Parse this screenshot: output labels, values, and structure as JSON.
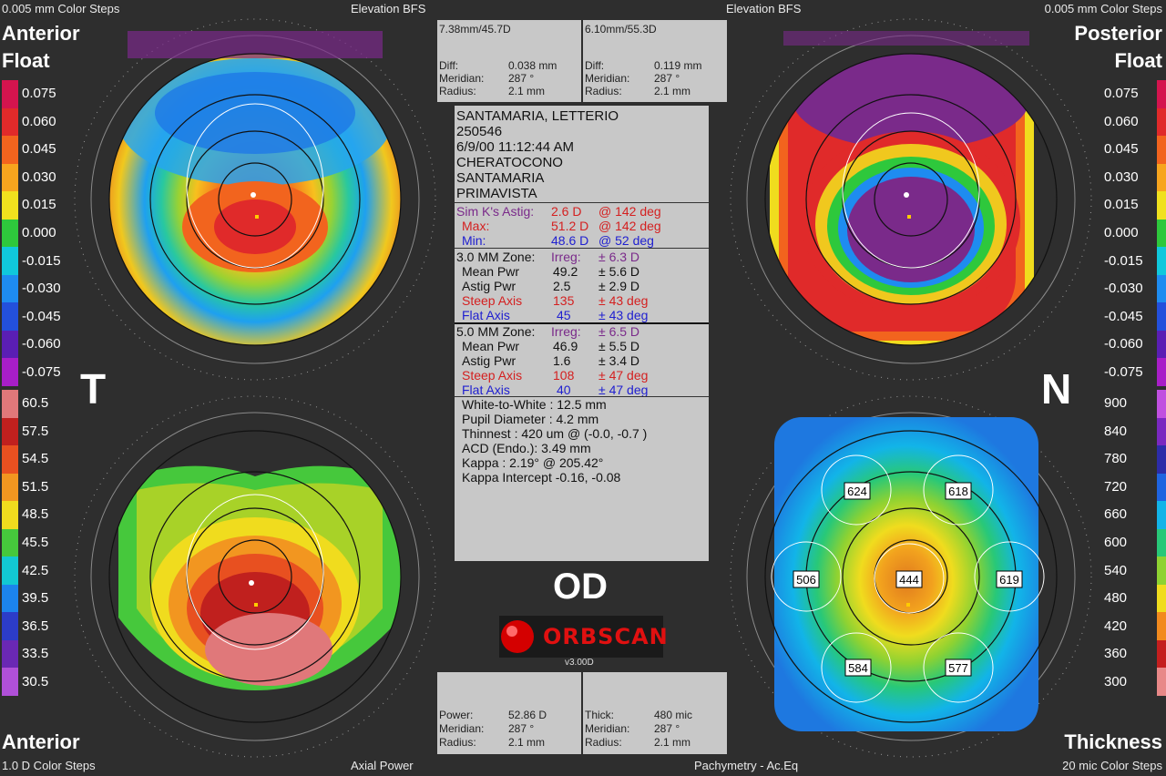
{
  "corners": {
    "tl_steps": "0.005 mm Color Steps",
    "tl_bfs": "Elevation BFS",
    "tr_bfs": "Elevation BFS",
    "tr_steps": "0.005 mm Color Steps",
    "bl_steps": "1.0 D Color Steps",
    "bl_type": "Axial Power",
    "br_type": "Pachymetry - Ac.Eq",
    "br_steps": "20 mic Color Steps"
  },
  "titles": {
    "anterior_float_1": "Anterior",
    "anterior_float_2": "Float",
    "posterior_float_1": "Posterior",
    "posterior_float_2": "Float",
    "anterior_bottom": "Anterior",
    "thickness": "Thickness"
  },
  "side_letters": {
    "temporal": "T",
    "nasal": "N"
  },
  "eye_label": "OD",
  "logo_text": "ORBSCAN",
  "version": "v3.00D",
  "scale_float": [
    "0.075",
    "0.060",
    "0.045",
    "0.030",
    "0.015",
    "0.000",
    "-0.015",
    "-0.030",
    "-0.045",
    "-0.060",
    "-0.075"
  ],
  "scale_float_colors": [
    "#d4144e",
    "#e02a2a",
    "#f2641e",
    "#f7a51e",
    "#f0e11e",
    "#2ec83c",
    "#10c8dc",
    "#1e8cf0",
    "#2350dc",
    "#5a1eb4",
    "#a81ec8"
  ],
  "scale_power": [
    "60.5",
    "57.5",
    "54.5",
    "51.5",
    "48.5",
    "45.5",
    "42.5",
    "39.5",
    "36.5",
    "33.5",
    "30.5"
  ],
  "scale_power_colors": [
    "#e0787a",
    "#c0201e",
    "#e85020",
    "#f29620",
    "#f0dc1e",
    "#46c83c",
    "#12c8d2",
    "#1c84ec",
    "#2c3cc8",
    "#6a28b4",
    "#b050d8"
  ],
  "scale_thick": [
    "900",
    "840",
    "780",
    "720",
    "660",
    "600",
    "540",
    "480",
    "420",
    "360",
    "300"
  ],
  "scale_thick_colors": [
    "#c050e0",
    "#7a28c0",
    "#2c2ca8",
    "#1e64e0",
    "#12b4e8",
    "#28c878",
    "#8ed232",
    "#f0dc1e",
    "#f28a1e",
    "#c41e1e",
    "#e88888"
  ],
  "top_box": {
    "left_head": "7.38mm/45.7D",
    "right_head": "6.10mm/55.3D",
    "left_rows": [
      [
        "Diff:",
        "0.038 mm"
      ],
      [
        "Meridian:",
        "287 °"
      ],
      [
        "Radius:",
        "2.1 mm"
      ]
    ],
    "right_rows": [
      [
        "Diff:",
        "0.119 mm"
      ],
      [
        "Meridian:",
        "287 °"
      ],
      [
        "Radius:",
        "2.1 mm"
      ]
    ]
  },
  "bottom_box": {
    "left_rows": [
      [
        "Power:",
        "52.86 D"
      ],
      [
        "Meridian:",
        "287 °"
      ],
      [
        "Radius:",
        "2.1 mm"
      ]
    ],
    "right_rows": [
      [
        "Thick:",
        "480 mic"
      ],
      [
        "Meridian:",
        "287 °"
      ],
      [
        "Radius:",
        "2.1 mm"
      ]
    ]
  },
  "patient": {
    "name": "SANTAMARIA, LETTERIO",
    "id": "250546",
    "datetime": "6/9/00 11:12:44 AM",
    "diagnosis": "CHERATOCONO",
    "doctor": "SANTAMARIA",
    "visit": "PRIMAVISTA"
  },
  "simk": {
    "astig_label": "Sim K's Astig:",
    "astig_val": "2.6 D",
    "astig_axis": "@ 142 deg",
    "max_label": "Max:",
    "max_val": "51.2 D",
    "max_axis": "@ 142 deg",
    "min_label": "Min:",
    "min_val": "48.6 D",
    "min_axis": "@ 52 deg"
  },
  "zone3": {
    "head": "3.0 MM Zone:",
    "irreg_label": "Irreg:",
    "irreg_val": "± 6.3 D",
    "rows": [
      [
        "Mean Pwr",
        "49.2",
        "± 5.6 D"
      ],
      [
        "Astig Pwr",
        "2.5",
        "± 2.9 D"
      ],
      [
        "Steep Axis",
        "135",
        "± 43 deg"
      ],
      [
        "Flat Axis",
        "45",
        "± 43 deg"
      ]
    ]
  },
  "zone5": {
    "head": "5.0 MM Zone:",
    "irreg_label": "Irreg:",
    "irreg_val": "± 6.5 D",
    "rows": [
      [
        "Mean Pwr",
        "46.9",
        "± 5.5 D"
      ],
      [
        "Astig Pwr",
        "1.6",
        "± 3.4 D"
      ],
      [
        "Steep Axis",
        "108",
        "± 47 deg"
      ],
      [
        "Flat Axis",
        "40",
        "± 47 deg"
      ]
    ]
  },
  "extra": [
    "White-to-White : 12.5 mm",
    "Pupil Diameter :  4.2 mm",
    "Thinnest : 420 um @ (-0.0, -0.7 )",
    "ACD (Endo.): 3.49 mm",
    "Kappa : 2.19° @ 205.42°",
    "Kappa Intercept  -0.16, -0.08"
  ],
  "pachy_points": {
    "center": "444",
    "upper_left": "624",
    "upper_right": "618",
    "left": "506",
    "right": "619",
    "lower_left": "584",
    "lower_right": "577"
  }
}
